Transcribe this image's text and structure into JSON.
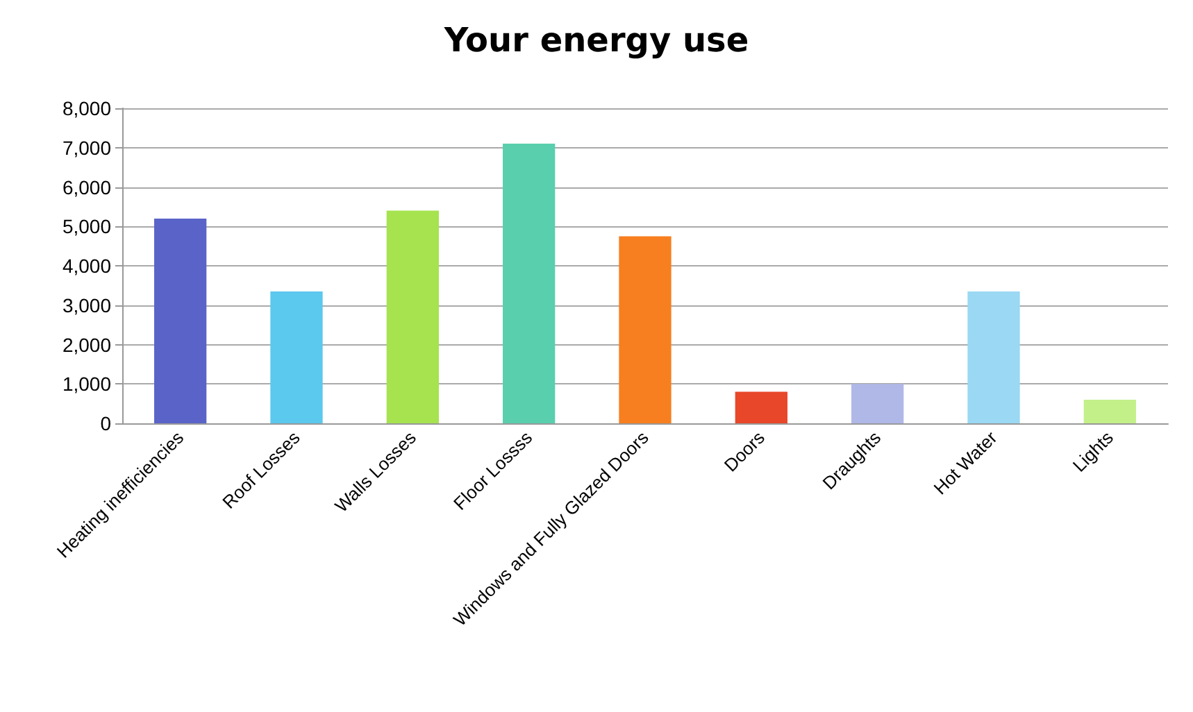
{
  "chart_data": {
    "type": "bar",
    "title": "Your energy use",
    "categories": [
      "Heating inefficiencies",
      "Roof Losses",
      "Walls Losses",
      "Floor Lossss",
      "Windows and Fully Glazed Doors",
      "Doors",
      "Draughts",
      "Hot Water",
      "Lights"
    ],
    "values": [
      5200,
      3350,
      5400,
      7100,
      4750,
      800,
      1000,
      3350,
      600
    ],
    "colors": [
      "#5a64c8",
      "#5bc8ee",
      "#a6e34f",
      "#59cfad",
      "#f77f1f",
      "#e8472a",
      "#b0b8e8",
      "#9ad8f4",
      "#c4f08a"
    ],
    "ylim": [
      0,
      8000
    ],
    "yticks": [
      0,
      {
        "value": 1000,
        "label": "1,000"
      },
      {
        "value": 2000,
        "label": "2,000"
      },
      {
        "value": 3000,
        "label": "3,000"
      },
      {
        "value": 4000,
        "label": "4,000"
      },
      {
        "value": 5000,
        "label": "5,000"
      },
      {
        "value": 6000,
        "label": "6,000"
      },
      {
        "value": 7000,
        "label": "7,000"
      },
      {
        "value": 8000,
        "label": "8,000"
      }
    ],
    "grid": "y"
  }
}
